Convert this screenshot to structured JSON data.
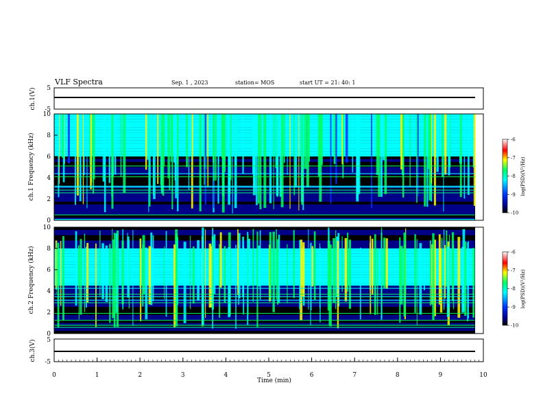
{
  "header": {
    "title": "VLF Spectra",
    "date": "Sep. 1 , 2023",
    "station": "station= MOS",
    "start": "start UT =  21: 40: 1"
  },
  "chart_data": [
    {
      "panel": "ch1_voltage",
      "type": "line",
      "ylabel": "ch.1(V)",
      "ylim": [
        -5,
        5
      ],
      "y_ticks": [
        "5",
        "-5"
      ],
      "x": [
        0,
        9.8
      ],
      "values": [
        0,
        0
      ]
    },
    {
      "panel": "ch1_spectrogram",
      "type": "heatmap",
      "ylabel": "ch.1 Frequency (kHz)",
      "ylim": [
        0,
        10
      ],
      "y_ticks": [
        "0",
        "2",
        "4",
        "6",
        "8",
        "10"
      ],
      "xlim": [
        0,
        10
      ],
      "data_end_min": 9.8,
      "colorbar": {
        "label": "log(PSD)(V²/Hz)",
        "range": [
          -10,
          -6
        ],
        "ticks": [
          "-6",
          "-7",
          "-8",
          "-9",
          "-10"
        ]
      },
      "description_values": {
        "dominant_band_khz": [
          6,
          10
        ],
        "dominant_level": -7,
        "background_level": -9.5
      }
    },
    {
      "panel": "ch2_spectrogram",
      "type": "heatmap",
      "ylabel": "ch.2 Frequency (kHz)",
      "ylim": [
        0,
        10
      ],
      "y_ticks": [
        "0",
        "2",
        "4",
        "6",
        "8",
        "10"
      ],
      "xlim": [
        0,
        10
      ],
      "data_end_min": 9.8,
      "colorbar": {
        "label": "log(PSD)(V²/Hz)",
        "range": [
          -10,
          -6
        ],
        "ticks": [
          "-6",
          "-7",
          "-8",
          "-9",
          "-10"
        ]
      },
      "description_values": {
        "dominant_band_khz": [
          4.5,
          8
        ],
        "dominant_level": -6.8,
        "background_level": -9.3
      }
    },
    {
      "panel": "ch3_voltage",
      "type": "line",
      "ylabel": "ch.3(V)",
      "ylim": [
        -5,
        5
      ],
      "y_ticks": [
        "5",
        "-5"
      ],
      "x": [
        0,
        9.8
      ],
      "values": [
        0,
        0
      ]
    }
  ],
  "x_axis": {
    "label": "Time (min)",
    "ticks": [
      "0",
      "1",
      "2",
      "3",
      "4",
      "5",
      "6",
      "7",
      "8",
      "9",
      "10"
    ]
  },
  "colormap": [
    "#000000",
    "#00008b",
    "#0033ff",
    "#00ffff",
    "#00ff66",
    "#ffff00",
    "#ff0000",
    "#ffffff"
  ]
}
